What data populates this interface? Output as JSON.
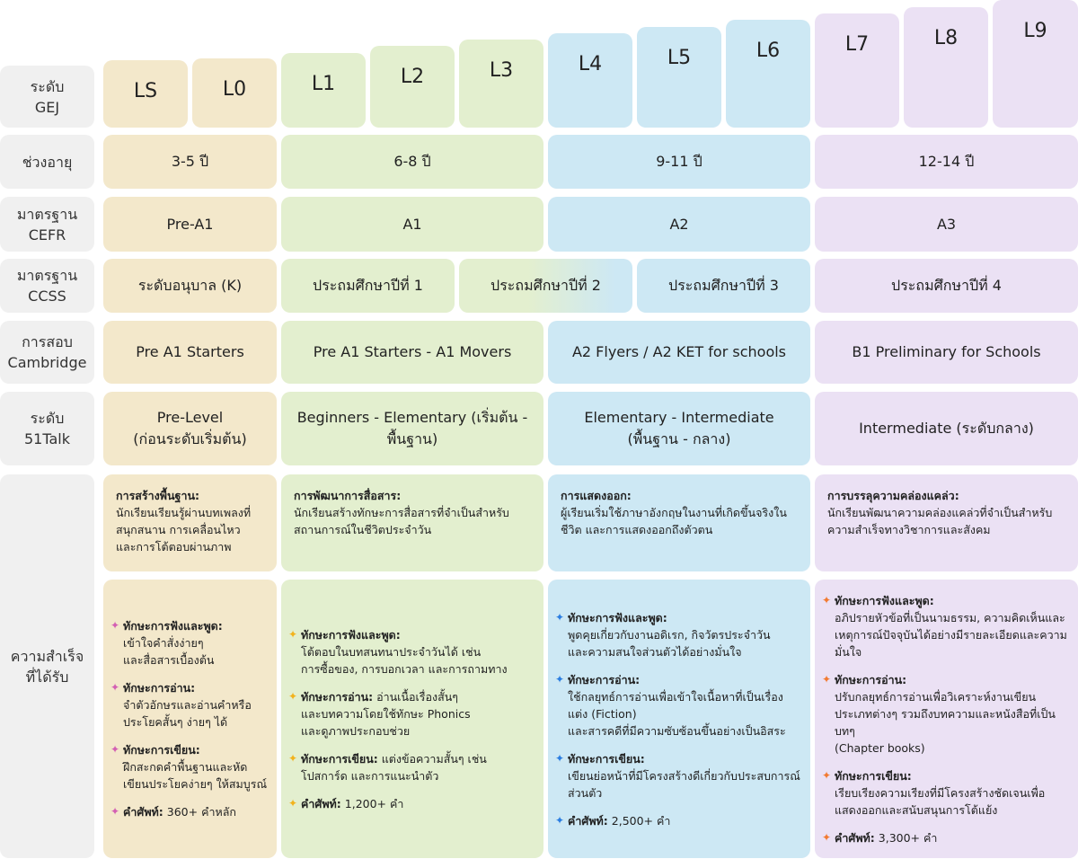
{
  "row_labels": {
    "level": "ระดับ\nGEJ",
    "age": "ช่วงอายุ",
    "cefr": "มาตรฐาน\nCEFR",
    "ccss": "มาตรฐาน\nCCSS",
    "cambridge": "การสอบ\nCambridge",
    "talk": "ระดับ\n51Talk",
    "achievement": "ความสำเร็จ\nที่ได้รับ"
  },
  "levels": [
    "LS",
    "L0",
    "L1",
    "L2",
    "L3",
    "L4",
    "L5",
    "L6",
    "L7",
    "L8",
    "L9"
  ],
  "colors": {
    "group1": "#f3e8cb",
    "group2": "#e3efcf",
    "group3": "#cde8f4",
    "group4": "#ebe1f4",
    "bullet1": "#d35fb3",
    "bullet2": "#f2b21c",
    "bullet3": "#2a7de1",
    "bullet4": "#f27a30"
  },
  "age": [
    "3-5 ปี",
    "6-8 ปี",
    "9-11 ปี",
    "12-14 ปี"
  ],
  "cefr": [
    "Pre-A1",
    "A1",
    "A2",
    "A3"
  ],
  "ccss": [
    "ระดับอนุบาล (K)",
    "ประถมศึกษาปีที่ 1",
    "ประถมศึกษาปีที่ 2",
    "ประถมศึกษาปีที่ 3",
    "ประถมศึกษาปีที่ 4"
  ],
  "cambridge": [
    "Pre A1 Starters",
    "Pre A1 Starters - A1 Movers",
    "A2 Flyers / A2 KET for schools",
    "B1 Preliminary for Schools"
  ],
  "talk": [
    "Pre-Level\n(ก่อนระดับเริ่มต้น)",
    "Beginners - Elementary (เริ่มต้น -\nพื้นฐาน)",
    "Elementary - Intermediate\n(พื้นฐาน - กลาง)",
    "Intermediate (ระดับกลาง)"
  ],
  "summary": [
    {
      "title": "การสร้างพื้นฐาน:",
      "text": "นักเรียนเรียนรู้ผ่านบทเพลงที่สนุกสนาน การเคลื่อนไหว และการโต้ตอบผ่านภาพ"
    },
    {
      "title": "การพัฒนาการสื่อสาร:",
      "text": "นักเรียนสร้างทักษะการสื่อสารที่จำเป็นสำหรับสถานการณ์ในชีวิตประจำวัน"
    },
    {
      "title": "การแสดงออก:",
      "text": "ผู้เรียนเริ่มใช้ภาษาอังกฤษในงานที่เกิดขึ้นจริงในชีวิต และการแสดงออกถึงตัวตน"
    },
    {
      "title": "การบรรลุความคล่องแคล่ว:",
      "text": "นักเรียนพัฒนาความคล่องแคล่วที่จำเป็นสำหรับความสำเร็จทางวิชาการและสังคม"
    }
  ],
  "skills": [
    [
      {
        "k": "ทักษะการฟังและพูด:",
        "v": "\nเข้าใจคำสั่งง่ายๆ\nและสื่อสารเบื้องต้น"
      },
      {
        "k": "ทักษะการอ่าน:",
        "v": "\nจำตัวอักษรและอ่านคำหรือประโยคสั้นๆ ง่ายๆ ได้"
      },
      {
        "k": "ทักษะการเขียน:",
        "v": "\nฝึกสะกดคำพื้นฐานและหัดเขียนประโยคง่ายๆ ให้สมบูรณ์"
      },
      {
        "k": "คำศัพท์:",
        "v": " 360+ คำหลัก"
      }
    ],
    [
      {
        "k": "ทักษะการฟังและพูด:",
        "v": "\nโต้ตอบในบทสนทนาประจำวันได้ เช่น\nการซื้อของ, การบอกเวลา และการถามทาง"
      },
      {
        "k": "ทักษะการอ่าน:",
        "v": " อ่านเนื้อเรื่องสั้นๆ\nและบทความโดยใช้ทักษะ Phonics\nและดูภาพประกอบช่วย"
      },
      {
        "k": "ทักษะการเขียน:",
        "v": " แต่งข้อความสั้นๆ เช่น\nโปสการ์ด และการแนะนำตัว"
      },
      {
        "k": "คำศัพท์:",
        "v": " 1,200+ คำ"
      }
    ],
    [
      {
        "k": "ทักษะการฟังและพูด:",
        "v": "\nพูดคุยเกี่ยวกับงานอดิเรก, กิจวัตรประจำวัน\nและความสนใจส่วนตัวได้อย่างมั่นใจ"
      },
      {
        "k": "ทักษะการอ่าน:",
        "v": "\nใช้กลยุทธ์การอ่านเพื่อเข้าใจเนื้อหาที่เป็นเรื่องแต่ง (Fiction)\nและสารคดีที่มีความซับซ้อนขึ้นอย่างเป็นอิสระ"
      },
      {
        "k": "ทักษะการเขียน:",
        "v": "\nเขียนย่อหน้าที่มีโครงสร้างดีเกี่ยวกับประสบการณ์ส่วนตัว"
      },
      {
        "k": "คำศัพท์:",
        "v": "  2,500+ คำ"
      }
    ],
    [
      {
        "k": "ทักษะการฟังและพูด:",
        "v": "\nอภิปรายหัวข้อที่เป็นนามธรรม, ความคิดเห็นและเหตุการณ์ปัจจุบันได้อย่างมีรายละเอียดและความมั่นใจ"
      },
      {
        "k": "ทักษะการอ่าน:",
        "v": "\nปรับกลยุทธ์การอ่านเพื่อวิเคราะห์งานเขียนประเภทต่างๆ รวมถึงบทความและหนังสือที่เป็นบทๆ\n(Chapter books)"
      },
      {
        "k": "ทักษะการเขียน:",
        "v": "\nเรียบเรียงความเรียงที่มีโครงสร้างชัดเจนเพื่อแสดงออกและสนับสนุนการโต้แย้ง"
      },
      {
        "k": "คำศัพท์:",
        "v": " 3,300+ คำ"
      }
    ]
  ]
}
